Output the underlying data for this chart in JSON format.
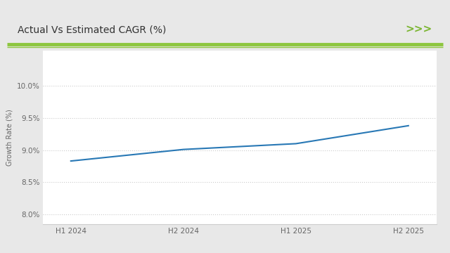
{
  "title": "Actual Vs Estimated CAGR (%)",
  "ylabel": "Growth Rate (%)",
  "x_labels": [
    "H1 2024",
    "H2 2024",
    "H1 2025",
    "H2 2025"
  ],
  "x_values": [
    0,
    1,
    2,
    3
  ],
  "y_values": [
    8.83,
    9.01,
    9.1,
    9.38
  ],
  "line_color": "#2878b5",
  "ylim": [
    7.85,
    10.55
  ],
  "yticks": [
    8.0,
    8.5,
    9.0,
    9.5,
    10.0
  ],
  "ytick_labels": [
    "8.0%",
    "8.5%",
    "9.0%",
    "9.5%",
    "10.0%"
  ],
  "background_color": "#e8e8e8",
  "frame_bg": "#f5f5f5",
  "plot_bg_color": "#ffffff",
  "title_fontsize": 10,
  "ylabel_fontsize": 7,
  "xtick_fontsize": 7.5,
  "ytick_fontsize": 7.5,
  "grid_color": "#cccccc",
  "green_line_color": "#8dc63f",
  "chevron_color": "#7ab530",
  "title_color": "#333333"
}
